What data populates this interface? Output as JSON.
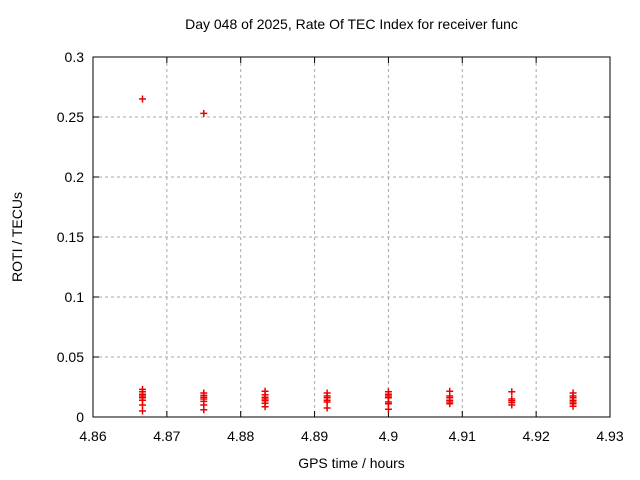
{
  "chart_data": {
    "type": "scatter",
    "title": "Day 048 of 2025, Rate Of TEC Index for receiver func",
    "xlabel": "GPS time / hours",
    "ylabel": "ROTI / TECUs",
    "xlim": [
      4.86,
      4.93
    ],
    "ylim": [
      0,
      0.3
    ],
    "xticks": {
      "values": [
        4.86,
        4.87,
        4.88,
        4.89,
        4.9,
        4.91,
        4.92,
        4.93
      ],
      "labels": [
        "4.86",
        "4.87",
        "4.88",
        "4.89",
        "4.9",
        "4.91",
        "4.92",
        "4.93"
      ]
    },
    "yticks": {
      "values": [
        0,
        0.05,
        0.1,
        0.15,
        0.2,
        0.25,
        0.3
      ],
      "labels": [
        "0",
        "0.05",
        "0.1",
        "0.15",
        "0.2",
        "0.25",
        "0.3"
      ]
    },
    "grid": true,
    "legend_position": "none",
    "marker": "plus",
    "marker_color": "#ee0000",
    "grid_color": "#a8a8a8",
    "axis_color": "#000000",
    "series": [
      {
        "name": "ROTI",
        "points": [
          [
            4.8667,
            0.265
          ],
          [
            4.8667,
            0.023
          ],
          [
            4.8667,
            0.021
          ],
          [
            4.8667,
            0.019
          ],
          [
            4.8667,
            0.0175
          ],
          [
            4.8667,
            0.016
          ],
          [
            4.8667,
            0.014
          ],
          [
            4.8667,
            0.01
          ],
          [
            4.8667,
            0.005
          ],
          [
            4.875,
            0.253
          ],
          [
            4.875,
            0.02
          ],
          [
            4.875,
            0.018
          ],
          [
            4.875,
            0.0165
          ],
          [
            4.875,
            0.015
          ],
          [
            4.875,
            0.013
          ],
          [
            4.875,
            0.01
          ],
          [
            4.875,
            0.006
          ],
          [
            4.8833,
            0.0215
          ],
          [
            4.8833,
            0.0185
          ],
          [
            4.8833,
            0.0165
          ],
          [
            4.8833,
            0.015
          ],
          [
            4.8833,
            0.0135
          ],
          [
            4.8833,
            0.0115
          ],
          [
            4.8833,
            0.0085
          ],
          [
            4.8917,
            0.02
          ],
          [
            4.8917,
            0.0175
          ],
          [
            4.8917,
            0.016
          ],
          [
            4.8917,
            0.014
          ],
          [
            4.8917,
            0.0125
          ],
          [
            4.8917,
            0.0075
          ],
          [
            4.9,
            0.021
          ],
          [
            4.9,
            0.019
          ],
          [
            4.9,
            0.0175
          ],
          [
            4.9,
            0.016
          ],
          [
            4.9,
            0.0125
          ],
          [
            4.9,
            0.011
          ],
          [
            4.9,
            0.0065
          ],
          [
            4.9083,
            0.0215
          ],
          [
            4.9083,
            0.0175
          ],
          [
            4.9083,
            0.016
          ],
          [
            4.9083,
            0.014
          ],
          [
            4.9083,
            0.0125
          ],
          [
            4.9083,
            0.011
          ],
          [
            4.9167,
            0.021
          ],
          [
            4.9167,
            0.015
          ],
          [
            4.9167,
            0.0135
          ],
          [
            4.9167,
            0.012
          ],
          [
            4.9167,
            0.01
          ],
          [
            4.925,
            0.02
          ],
          [
            4.925,
            0.0175
          ],
          [
            4.925,
            0.016
          ],
          [
            4.925,
            0.014
          ],
          [
            4.925,
            0.0125
          ],
          [
            4.925,
            0.011
          ],
          [
            4.925,
            0.009
          ]
        ]
      }
    ]
  }
}
